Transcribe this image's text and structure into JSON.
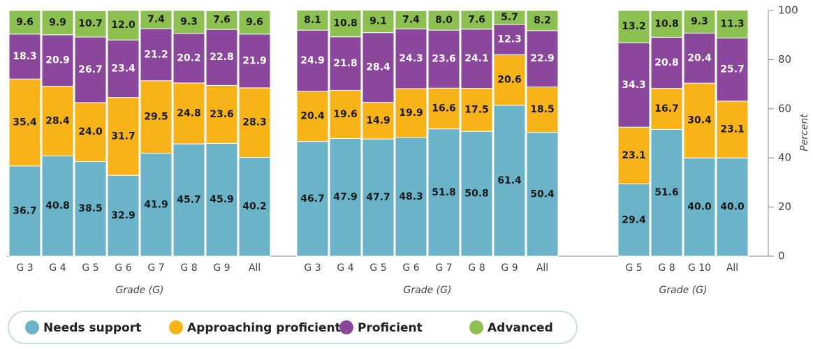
{
  "chart_data": {
    "type": "stacked_bar",
    "groups": [
      {
        "x_label": "Grade (G)",
        "categories": [
          "G 3",
          "G 4",
          "G 5",
          "G 6",
          "G 7",
          "G 8",
          "G 9",
          "All"
        ]
      },
      {
        "x_label": "Grade (G)",
        "categories": [
          "G 3",
          "G 4",
          "G 5",
          "G 6",
          "G 7",
          "G 8",
          "G 9",
          "All"
        ]
      },
      {
        "x_label": "Grade (G)",
        "categories": [
          "G 5",
          "G 8",
          "G 10",
          "All"
        ]
      }
    ],
    "series": [
      {
        "name": "Needs support",
        "color": "#6bb3c8",
        "label_color": "#1a1a1a",
        "values": [
          36.7,
          40.8,
          38.5,
          32.9,
          41.9,
          45.7,
          45.9,
          40.2,
          46.7,
          47.9,
          47.7,
          48.3,
          51.8,
          50.8,
          61.4,
          50.4,
          29.4,
          51.6,
          40.0,
          40.0
        ],
        "value_labels": [
          "36.7",
          "40.8",
          "38.5",
          "32.9",
          "41.9",
          "45.7",
          "45.9",
          "40.2",
          "46.7",
          "47.9",
          "47.7",
          "48.3",
          "51.8",
          "50.8",
          "61.4",
          "50.4",
          "29.4",
          "51.6",
          "40.0",
          "40.0"
        ]
      },
      {
        "name": "Approaching proficient",
        "color": "#f8b318",
        "label_color": "#1a1a1a",
        "values": [
          35.4,
          28.4,
          24.0,
          31.7,
          29.5,
          24.8,
          23.6,
          28.3,
          20.4,
          19.6,
          14.9,
          19.9,
          16.6,
          17.5,
          20.6,
          18.5,
          23.1,
          16.7,
          30.4,
          23.1
        ],
        "value_labels": [
          "35.4",
          "28.4",
          "24.0",
          "31.7",
          "29.5",
          "24.8",
          "23.6",
          "28.3",
          "20.4",
          "19.6",
          "14.9",
          "19.9",
          "16.6",
          "17.5",
          "20.6",
          "18.5",
          "23.1",
          "16.7",
          "30.4",
          "23.1"
        ]
      },
      {
        "name": "Proficient",
        "color": "#8b479b",
        "label_color": "#ffffff",
        "values": [
          18.3,
          20.9,
          26.7,
          23.4,
          21.2,
          20.2,
          22.8,
          21.9,
          24.9,
          21.8,
          28.4,
          24.3,
          23.6,
          24.1,
          12.3,
          22.9,
          34.3,
          20.8,
          20.4,
          25.7
        ],
        "value_labels": [
          "18.3",
          "20.9",
          "26.7",
          "23.4",
          "21.2",
          "20.2",
          "22.8",
          "21.9",
          "24.9",
          "21.8",
          "28.4",
          "24.3",
          "23.6",
          "24.1",
          "12.3",
          "22.9",
          "34.3",
          "20.8",
          "20.4",
          "25.7"
        ]
      },
      {
        "name": "Advanced",
        "color": "#8cc152",
        "label_color": "#1a1a1a",
        "values": [
          9.6,
          9.9,
          10.7,
          12.0,
          7.4,
          9.3,
          7.6,
          9.6,
          8.1,
          10.8,
          9.1,
          7.4,
          8.0,
          7.6,
          5.7,
          8.2,
          13.2,
          10.8,
          9.3,
          11.3
        ],
        "value_labels": [
          "9.6",
          "9.9",
          "10.7",
          "12.0",
          "7.4",
          "9.3",
          "7.6",
          "9.6",
          "8.1",
          "10.8",
          "9.1",
          "7.4",
          "8.0",
          "7.6",
          "5.7",
          "8.2",
          "13.2",
          "10.8",
          "9.3",
          "11.3"
        ]
      }
    ],
    "y_label": "Percent",
    "ylim": [
      0,
      100
    ],
    "yticks": [
      0,
      20,
      40,
      60,
      80,
      100
    ]
  }
}
